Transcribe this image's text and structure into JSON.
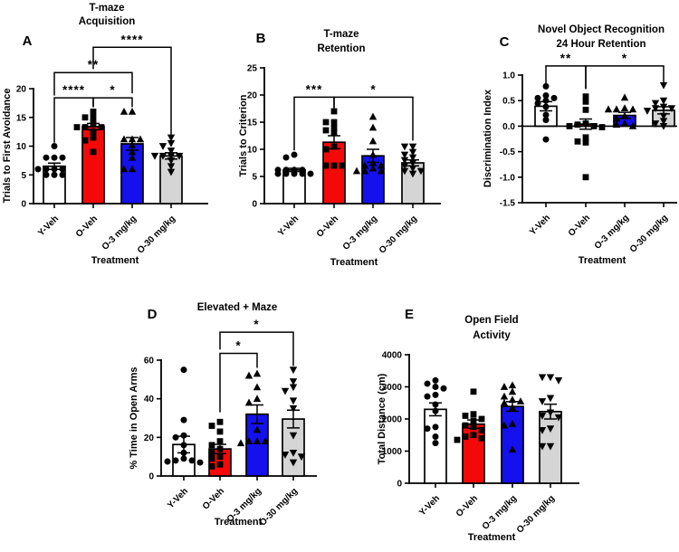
{
  "figure": {
    "background": "#ffffff",
    "axis_color": "#000000",
    "marker_color": "#000000"
  },
  "groups": [
    "Y-Veh",
    "O-Veh",
    "O-3 mg/kg",
    "O-30 mg/kg"
  ],
  "group_fills": [
    "#FFFFFF",
    "#F50808",
    "#1410EE",
    "#D5D5D5"
  ],
  "group_markers": [
    "circle",
    "square",
    "triangle-up",
    "triangle-down"
  ],
  "chart_data": [
    {
      "id": "A",
      "panel_label": "A",
      "type": "bar",
      "title_lines": [
        "T-maze",
        "Acquisition"
      ],
      "ylabel": "Trials to First  Avoidance",
      "xlabel": "Treatment",
      "categories": [
        "Y-Veh",
        "O-Veh",
        "O-3 mg/kg",
        "O-30 mg/kg"
      ],
      "ylim": [
        0,
        20
      ],
      "yticks": [
        0,
        5,
        10,
        15,
        20
      ],
      "ytick_labels": [
        "0",
        "5",
        "10",
        "15",
        "20"
      ],
      "means": [
        6.5,
        13.4,
        10.4,
        8.3
      ],
      "sems": [
        0.55,
        0.55,
        1.1,
        0.55
      ],
      "points": [
        [
          10,
          8,
          8,
          8,
          6,
          6,
          6,
          6,
          5,
          5,
          5
        ],
        [
          16,
          15,
          15,
          14,
          13.3,
          13.3,
          13.3,
          12.5,
          11.5,
          11,
          9
        ],
        [
          16,
          16,
          11.2,
          11.2,
          11.2,
          10.2,
          9,
          8,
          6,
          6
        ],
        [
          11.5,
          10.5,
          10,
          9.2,
          8.3,
          8.3,
          8.3,
          8.3,
          7.5,
          6.5,
          5.5
        ]
      ],
      "brackets": [
        {
          "g1": 0,
          "g2": 1,
          "bar_y": 18.4,
          "leg1_y": 10.6,
          "leg2_y": 16.8,
          "label": "****"
        },
        {
          "g1": 1,
          "g2": 2,
          "bar_y": 18.4,
          "leg1_y": 16.8,
          "leg2_y": 16.8,
          "label": "*"
        },
        {
          "g1": 0,
          "g2": 2,
          "bar_y": 22.8,
          "leg1_y": 18.8,
          "leg2_y": 19.2,
          "label": "**"
        },
        {
          "g1": 1,
          "g2": 3,
          "bar_y": 27.2,
          "leg1_y": 23.4,
          "leg2_y": 12.0,
          "label": "****"
        }
      ]
    },
    {
      "id": "B",
      "panel_label": "B",
      "type": "bar",
      "title_lines": [
        "T-maze",
        "Retention"
      ],
      "ylabel": "Trials to Criterion",
      "xlabel": "Treatment",
      "categories": [
        "Y-Veh",
        "O-Veh",
        "O-3 mg/kg",
        "O-30 mg/kg"
      ],
      "ylim": [
        0,
        25
      ],
      "yticks": [
        0,
        5,
        10,
        15,
        20,
        25
      ],
      "ytick_labels": [
        "0",
        "5",
        "10",
        "15",
        "20",
        "25"
      ],
      "means": [
        6.2,
        11.3,
        8.8,
        7.5
      ],
      "sems": [
        0.3,
        1.2,
        1.2,
        0.55
      ],
      "points": [
        [
          9,
          8.5,
          6.2,
          6.2,
          6.2,
          6.2,
          5.5,
          5.5,
          5.5,
          5.5,
          5.5
        ],
        [
          17,
          15,
          15,
          14,
          13.5,
          13,
          10.5,
          10,
          7,
          7,
          7
        ],
        [
          16,
          14,
          11.5,
          9,
          7.5,
          7,
          7,
          6.5,
          6,
          6,
          6
        ],
        [
          10.5,
          10.5,
          9.5,
          9,
          8.5,
          8,
          7.5,
          7,
          6.5,
          6,
          6,
          5.5
        ]
      ],
      "brackets": [
        {
          "g1": 0,
          "g2": 1,
          "bar_y": 19.6,
          "leg1_y": 9.8,
          "leg2_y": 17.6,
          "label": "***"
        },
        {
          "g1": 1,
          "g2": 3,
          "bar_y": 19.6,
          "leg1_y": 17.6,
          "leg2_y": 11.6,
          "label": "*"
        }
      ]
    },
    {
      "id": "C",
      "panel_label": "C",
      "type": "bar",
      "title_lines": [
        "Novel Object Recognition",
        "24 Hour Retention"
      ],
      "ylabel": "Discrimination Index",
      "xlabel": "Treatment",
      "categories": [
        "Y-Veh",
        "O-Veh",
        "O-3 mg/kg",
        "O-30 mg/kg"
      ],
      "ylim": [
        -1.5,
        1.0
      ],
      "yticks": [
        -1.5,
        -1.0,
        -0.5,
        0.0,
        0.5,
        1.0
      ],
      "ytick_labels": [
        "-1.5",
        "-1.0",
        "-0.5",
        "0.0",
        "0.5",
        "1.0"
      ],
      "means": [
        0.39,
        0.04,
        0.21,
        0.31
      ],
      "sems": [
        0.09,
        0.1,
        0.06,
        0.07
      ],
      "points": [
        [
          0.78,
          0.6,
          0.55,
          0.55,
          0.5,
          0.45,
          0.38,
          0.22,
          0.12,
          -0.26
        ],
        [
          0.58,
          0.48,
          0.32,
          0.05,
          0.03,
          0,
          0,
          -0.02,
          -0.22,
          -0.3,
          -0.32,
          -1.0
        ],
        [
          0.56,
          0.35,
          0.33,
          0.33,
          0.33,
          0.2,
          0.15,
          0.05,
          0.03,
          0
        ],
        [
          0.8,
          0.5,
          0.45,
          0.38,
          0.35,
          0.35,
          0.3,
          0.2,
          0.1,
          0.05,
          0
        ]
      ],
      "brackets": [
        {
          "g1": 0,
          "g2": 1,
          "bar_y": 1.18,
          "leg1_y": 0.8,
          "leg2_y": 0.73,
          "label": "**"
        },
        {
          "g1": 1,
          "g2": 3,
          "bar_y": 1.18,
          "leg1_y": 0.73,
          "leg2_y": 0.86,
          "label": "*"
        }
      ]
    },
    {
      "id": "D",
      "panel_label": "D",
      "type": "bar",
      "title_lines": [
        "Elevated +  Maze"
      ],
      "ylabel": "% Time in Open Arms",
      "xlabel": "Treatment",
      "categories": [
        "Y-Veh",
        "O-Veh",
        "O-3 mg/kg",
        "O-30 mg/kg"
      ],
      "ylim": [
        0,
        60
      ],
      "yticks": [
        0,
        20,
        40,
        60
      ],
      "ytick_labels": [
        "0",
        "20",
        "40",
        "60"
      ],
      "means": [
        16.3,
        14,
        32,
        29.5
      ],
      "sems": [
        4.3,
        2.4,
        4.8,
        4.6
      ],
      "points": [
        [
          55,
          29,
          21,
          20,
          16,
          12,
          9,
          8,
          8,
          7.5,
          7
        ],
        [
          28,
          26,
          23,
          18,
          16,
          14,
          12,
          10,
          9,
          6,
          5
        ],
        [
          53,
          52,
          46,
          40,
          38,
          24,
          18,
          18,
          18,
          17
        ],
        [
          55,
          49,
          46,
          44,
          39,
          35,
          21,
          12,
          11,
          10,
          7
        ]
      ],
      "brackets": [
        {
          "g1": 1,
          "g2": 2,
          "bar_y": 63.5,
          "leg1_y": 33,
          "leg2_y": 56,
          "label": "*"
        },
        {
          "g1": 1,
          "g2": 3,
          "bar_y": 74.5,
          "leg1_y": 65.5,
          "leg2_y": 57,
          "label": "*"
        }
      ]
    },
    {
      "id": "E",
      "panel_label": "E",
      "type": "bar",
      "title_lines": [
        "Open  Field",
        "Activity"
      ],
      "ylabel": "Total Distance (cm)",
      "xlabel": "Treatment",
      "categories": [
        "Y-Veh",
        "O-Veh",
        "O-3 mg/kg",
        "O-30 mg/kg"
      ],
      "ylim": [
        0,
        4000
      ],
      "yticks": [
        0,
        1000,
        2000,
        3000,
        4000
      ],
      "ytick_labels": [
        "0",
        "1000",
        "2000",
        "3000",
        "4000"
      ],
      "means": [
        2300,
        1840,
        2390,
        2230
      ],
      "sems": [
        200,
        130,
        150,
        230
      ],
      "points": [
        [
          3200,
          3100,
          3000,
          2950,
          2750,
          2700,
          2450,
          2250,
          1750,
          1700,
          1450,
          1250
        ],
        [
          2850,
          2150,
          2100,
          2000,
          1950,
          1800,
          1750,
          1650,
          1500,
          1450,
          1400,
          1350
        ],
        [
          3050,
          3000,
          2850,
          2700,
          2600,
          2550,
          2500,
          2350,
          1850,
          1800,
          1050
        ],
        [
          3300,
          3300,
          3200,
          2650,
          2550,
          2200,
          2100,
          2050,
          1700,
          1650,
          1150,
          1150
        ]
      ],
      "brackets": []
    }
  ]
}
